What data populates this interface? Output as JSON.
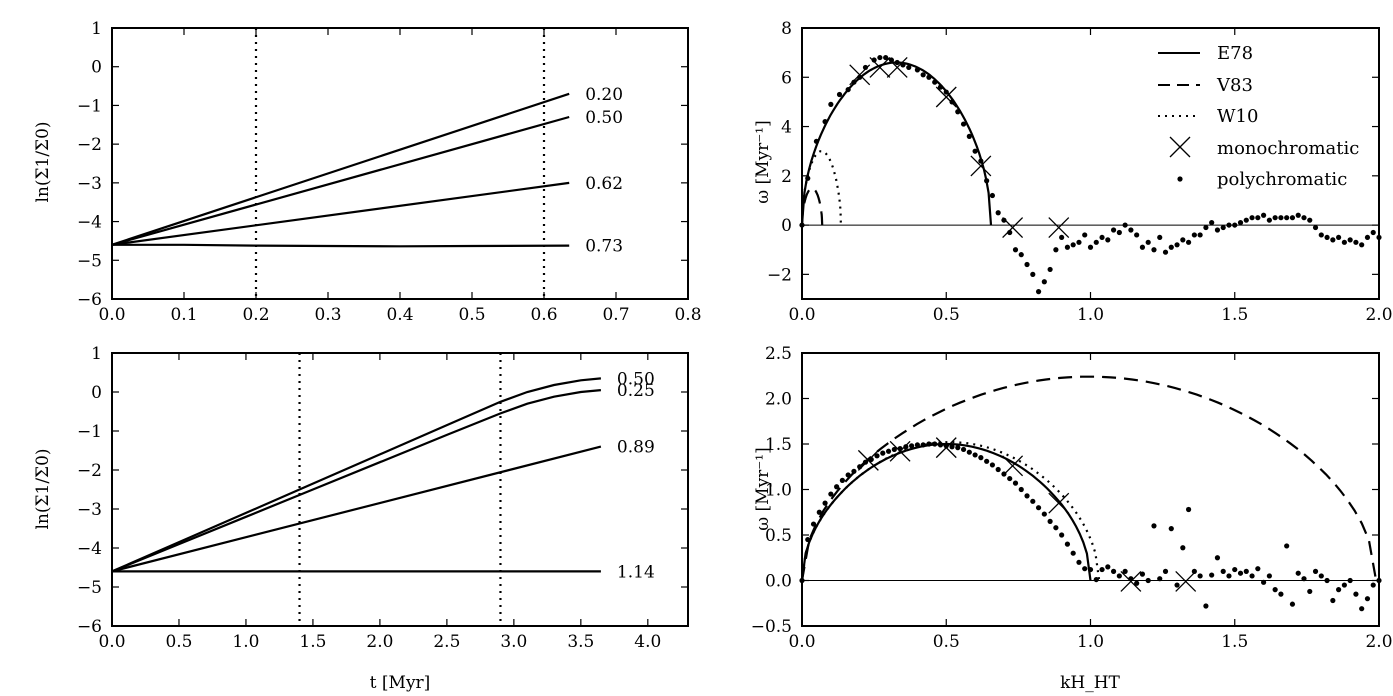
{
  "chart_data": [
    {
      "id": "top-left",
      "type": "line",
      "xlabel": "",
      "ylabel": "ln(Σ1/Σ0)",
      "xlim": [
        0,
        0.8
      ],
      "ylim": [
        -6,
        1
      ],
      "xticks": [
        "0.0",
        "0.1",
        "0.2",
        "0.3",
        "0.4",
        "0.5",
        "0.6",
        "0.7",
        "0.8"
      ],
      "yticks": [
        "−6",
        "−5",
        "−4",
        "−3",
        "−2",
        "−1",
        "0",
        "1"
      ],
      "vlines": [
        0.2,
        0.6
      ],
      "series": [
        {
          "name": "0.20",
          "label": "0.20",
          "x": [
            0,
            0.635
          ],
          "y": [
            -4.6,
            -0.7
          ]
        },
        {
          "name": "0.50",
          "label": "0.50",
          "x": [
            0,
            0.635
          ],
          "y": [
            -4.6,
            -1.3
          ]
        },
        {
          "name": "0.62",
          "label": "0.62",
          "x": [
            0,
            0.635
          ],
          "y": [
            -4.6,
            -3.0
          ]
        },
        {
          "name": "0.73",
          "label": "0.73",
          "x": [
            0,
            0.1,
            0.2,
            0.3,
            0.4,
            0.5,
            0.635
          ],
          "y": [
            -4.6,
            -4.6,
            -4.62,
            -4.63,
            -4.64,
            -4.63,
            -4.62
          ]
        }
      ]
    },
    {
      "id": "bottom-left",
      "type": "line",
      "xlabel": "t [Myr]",
      "ylabel": "ln(Σ1/Σ0)",
      "xlim": [
        0,
        4.3
      ],
      "ylim": [
        -6,
        1
      ],
      "xticks": [
        "0.0",
        "0.5",
        "1.0",
        "1.5",
        "2.0",
        "2.5",
        "3.0",
        "3.5",
        "4.0"
      ],
      "yticks": [
        "−6",
        "−5",
        "−4",
        "−3",
        "−2",
        "−1",
        "0",
        "1"
      ],
      "vlines": [
        1.4,
        2.9
      ],
      "series": [
        {
          "name": "0.50",
          "label": "0.50",
          "x": [
            0,
            0.5,
            1.0,
            1.5,
            2.0,
            2.5,
            2.9,
            3.1,
            3.3,
            3.5,
            3.65
          ],
          "y": [
            -4.6,
            -3.85,
            -3.1,
            -2.35,
            -1.6,
            -0.85,
            -0.25,
            0.0,
            0.18,
            0.3,
            0.35
          ]
        },
        {
          "name": "0.25",
          "label": "0.25",
          "x": [
            0,
            0.5,
            1.0,
            1.5,
            2.0,
            2.5,
            2.9,
            3.1,
            3.3,
            3.5,
            3.65
          ],
          "y": [
            -4.6,
            -3.9,
            -3.2,
            -2.5,
            -1.8,
            -1.1,
            -0.55,
            -0.3,
            -0.12,
            0.0,
            0.05
          ]
        },
        {
          "name": "0.89",
          "label": "0.89",
          "x": [
            0,
            3.65
          ],
          "y": [
            -4.6,
            -1.4
          ]
        },
        {
          "name": "1.14",
          "label": "1.14",
          "x": [
            0,
            3.65
          ],
          "y": [
            -4.6,
            -4.6
          ]
        }
      ]
    },
    {
      "id": "top-right",
      "type": "line",
      "xlabel": "",
      "ylabel": "ω [Myr⁻¹]",
      "xlim": [
        0,
        2.0
      ],
      "ylim": [
        -3,
        8
      ],
      "xticks": [
        "0.0",
        "0.5",
        "1.0",
        "1.5",
        "2.0"
      ],
      "yticks": [
        "−2",
        "0",
        "2",
        "4",
        "6",
        "8"
      ],
      "legend": [
        "E78",
        "V83",
        "W10",
        "monochromatic",
        "polychromatic"
      ],
      "E78": {
        "kmax": 0.655,
        "peak": 6.6
      },
      "V83": {
        "kmax": 0.07,
        "peak": 1.5
      },
      "W10": {
        "kmax": 0.135,
        "peak": 3.0
      },
      "monochromatic": {
        "x": [
          0.2,
          0.27,
          0.33,
          0.5,
          0.62,
          0.73,
          0.89
        ],
        "y": [
          6.1,
          6.4,
          6.4,
          5.2,
          2.4,
          -0.1,
          -0.1
        ]
      },
      "polychromatic": {
        "x": [
          0.0,
          0.02,
          0.05,
          0.08,
          0.1,
          0.13,
          0.16,
          0.18,
          0.2,
          0.22,
          0.25,
          0.27,
          0.29,
          0.31,
          0.33,
          0.35,
          0.37,
          0.4,
          0.42,
          0.44,
          0.46,
          0.48,
          0.5,
          0.52,
          0.54,
          0.56,
          0.58,
          0.6,
          0.62,
          0.64,
          0.66,
          0.68,
          0.7,
          0.72,
          0.74,
          0.76,
          0.78,
          0.8,
          0.82,
          0.84,
          0.86,
          0.88,
          0.9,
          0.92,
          0.94,
          0.96,
          0.98,
          1.0,
          1.02,
          1.04,
          1.06,
          1.08,
          1.1,
          1.12,
          1.14,
          1.16,
          1.18,
          1.2,
          1.22,
          1.24,
          1.26,
          1.28,
          1.3,
          1.32,
          1.34,
          1.36,
          1.38,
          1.4,
          1.42,
          1.44,
          1.46,
          1.48,
          1.5,
          1.52,
          1.54,
          1.56,
          1.58,
          1.6,
          1.62,
          1.64,
          1.66,
          1.68,
          1.7,
          1.72,
          1.74,
          1.76,
          1.78,
          1.8,
          1.82,
          1.84,
          1.86,
          1.88,
          1.9,
          1.92,
          1.94,
          1.96,
          1.98,
          2.0
        ],
        "y": [
          0.0,
          1.9,
          3.4,
          4.2,
          4.9,
          5.3,
          5.5,
          5.8,
          6.0,
          6.4,
          6.7,
          6.8,
          6.8,
          6.7,
          6.6,
          6.5,
          6.4,
          6.3,
          6.1,
          6.0,
          5.8,
          5.6,
          5.4,
          5.0,
          4.6,
          4.1,
          3.6,
          3.0,
          2.6,
          1.8,
          1.2,
          0.5,
          0.2,
          -0.3,
          -1.0,
          -1.2,
          -1.6,
          -2.0,
          -2.7,
          -2.3,
          -1.8,
          -1.0,
          -0.5,
          -0.9,
          -0.8,
          -0.7,
          -0.4,
          -0.9,
          -0.7,
          -0.5,
          -0.6,
          -0.2,
          -0.3,
          0.0,
          -0.2,
          -0.4,
          -0.9,
          -0.7,
          -1.0,
          -0.5,
          -1.1,
          -0.9,
          -0.8,
          -0.6,
          -0.7,
          -0.4,
          -0.4,
          -0.1,
          0.1,
          -0.2,
          -0.1,
          0.0,
          0.0,
          0.1,
          0.2,
          0.3,
          0.3,
          0.4,
          0.2,
          0.3,
          0.3,
          0.3,
          0.3,
          0.4,
          0.3,
          0.2,
          -0.1,
          -0.4,
          -0.5,
          -0.6,
          -0.5,
          -0.7,
          -0.6,
          -0.7,
          -0.8,
          -0.5,
          -0.3,
          -0.5
        ]
      }
    },
    {
      "id": "bottom-right",
      "type": "line",
      "xlabel": "kH_HT",
      "ylabel": "ω [Myr⁻¹]",
      "xlim": [
        0,
        2.0
      ],
      "ylim": [
        -0.5,
        2.5
      ],
      "xticks": [
        "0.0",
        "0.5",
        "1.0",
        "1.5",
        "2.0"
      ],
      "yticks": [
        "−0.5",
        "0.0",
        "0.5",
        "1.0",
        "1.5",
        "2.0",
        "2.5"
      ],
      "E78": {
        "kmax": 1.0,
        "peak": 1.5
      },
      "V83": {
        "kmax": 1.99,
        "peak": 2.24
      },
      "W10": {
        "kmax": 1.03,
        "peak": 1.52
      },
      "monochromatic": {
        "x": [
          0.23,
          0.34,
          0.5,
          0.73,
          0.89,
          1.14,
          1.33
        ],
        "y": [
          1.32,
          1.42,
          1.46,
          1.26,
          0.85,
          -0.01,
          -0.01
        ]
      },
      "polychromatic": {
        "x": [
          0.0,
          0.02,
          0.04,
          0.06,
          0.08,
          0.1,
          0.12,
          0.14,
          0.16,
          0.18,
          0.2,
          0.22,
          0.24,
          0.26,
          0.28,
          0.3,
          0.32,
          0.34,
          0.36,
          0.38,
          0.4,
          0.42,
          0.44,
          0.46,
          0.48,
          0.5,
          0.52,
          0.54,
          0.56,
          0.58,
          0.6,
          0.62,
          0.64,
          0.66,
          0.68,
          0.7,
          0.72,
          0.74,
          0.76,
          0.78,
          0.8,
          0.82,
          0.84,
          0.86,
          0.88,
          0.9,
          0.92,
          0.94,
          0.96,
          0.98,
          1.0,
          1.02,
          1.04,
          1.06,
          1.08,
          1.1,
          1.12,
          1.14,
          1.16,
          1.18,
          1.2,
          1.22,
          1.24,
          1.26,
          1.28,
          1.3,
          1.32,
          1.34,
          1.36,
          1.38,
          1.4,
          1.42,
          1.44,
          1.46,
          1.48,
          1.5,
          1.52,
          1.54,
          1.56,
          1.58,
          1.6,
          1.62,
          1.64,
          1.66,
          1.68,
          1.7,
          1.72,
          1.74,
          1.76,
          1.78,
          1.8,
          1.82,
          1.84,
          1.86,
          1.88,
          1.9,
          1.92,
          1.94,
          1.96,
          1.98,
          2.0
        ],
        "y": [
          0.0,
          0.45,
          0.62,
          0.75,
          0.85,
          0.95,
          1.03,
          1.1,
          1.16,
          1.2,
          1.25,
          1.3,
          1.33,
          1.37,
          1.4,
          1.42,
          1.44,
          1.45,
          1.47,
          1.48,
          1.49,
          1.49,
          1.5,
          1.5,
          1.49,
          1.48,
          1.47,
          1.46,
          1.44,
          1.41,
          1.38,
          1.35,
          1.31,
          1.27,
          1.22,
          1.17,
          1.12,
          1.07,
          1.0,
          0.93,
          0.87,
          0.8,
          0.73,
          0.65,
          0.58,
          0.5,
          0.4,
          0.3,
          0.2,
          0.13,
          0.12,
          0.01,
          0.12,
          0.15,
          0.1,
          0.05,
          0.1,
          0.02,
          -0.03,
          0.07,
          0.0,
          0.6,
          0.02,
          0.1,
          0.57,
          -0.05,
          0.36,
          0.78,
          0.1,
          0.05,
          -0.28,
          0.06,
          0.25,
          0.1,
          0.05,
          0.12,
          0.08,
          0.1,
          0.05,
          0.13,
          -0.02,
          0.05,
          -0.1,
          -0.15,
          0.38,
          -0.26,
          0.08,
          0.02,
          -0.12,
          0.1,
          0.05,
          0.0,
          -0.22,
          -0.1,
          -0.05,
          0.0,
          -0.15,
          -0.31,
          -0.2,
          -0.05,
          0.0
        ]
      }
    }
  ]
}
